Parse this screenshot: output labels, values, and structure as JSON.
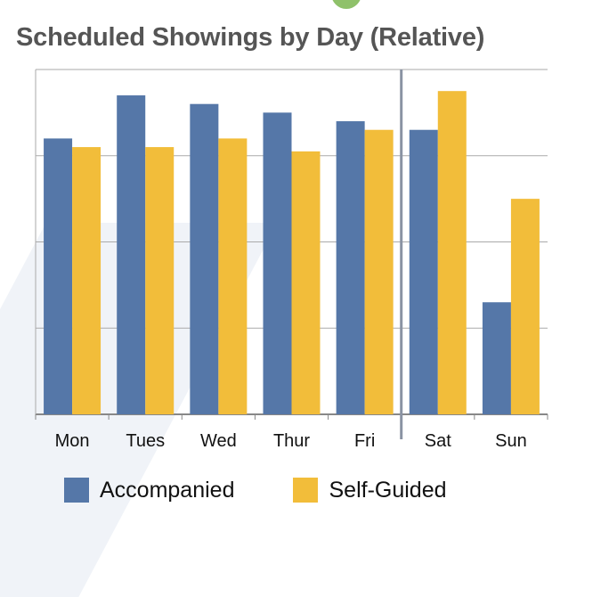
{
  "chart_data": {
    "type": "bar",
    "title": "Scheduled Showings by Day (Relative)",
    "categories": [
      "Mon",
      "Tues",
      "Wed",
      "Thur",
      "Fri",
      "Sat",
      "Sun"
    ],
    "series": [
      {
        "name": "Accompanied",
        "color": "#5577a8",
        "values": [
          3.2,
          3.7,
          3.6,
          3.5,
          3.4,
          3.3,
          1.3
        ]
      },
      {
        "name": "Self-Guided",
        "color": "#f2bd3a",
        "values": [
          3.1,
          3.1,
          3.2,
          3.05,
          3.3,
          3.75,
          2.5
        ]
      }
    ],
    "ylim": [
      0,
      4
    ],
    "grid": true,
    "legend": "bottom",
    "divider_after": "Fri"
  }
}
